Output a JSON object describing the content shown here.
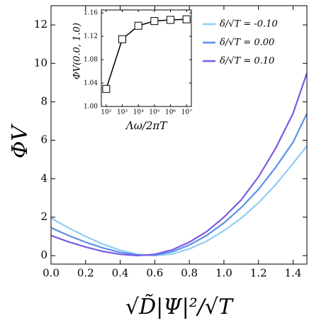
{
  "chart_data": [
    {
      "type": "line",
      "x_label": "√D̃|Ψ|²/√T",
      "y_label": "ΦV",
      "x": [
        0,
        0.1,
        0.2,
        0.3,
        0.4,
        0.5,
        0.6,
        0.7,
        0.8,
        0.9,
        1.0,
        1.1,
        1.2,
        1.3,
        1.4,
        1.48
      ],
      "series": [
        {
          "name": "δ/√T = -0.10",
          "color": "#8fcdf5",
          "values": [
            1.95,
            1.45,
            1.0,
            0.6,
            0.28,
            0.07,
            0.0,
            0.08,
            0.35,
            0.75,
            1.3,
            1.95,
            2.75,
            3.7,
            4.8,
            5.7
          ]
        },
        {
          "name": "δ/√T = 0.00",
          "color": "#5b8fe6",
          "values": [
            1.45,
            1.05,
            0.7,
            0.4,
            0.17,
            0.03,
            0.03,
            0.2,
            0.55,
            1.05,
            1.7,
            2.5,
            3.45,
            4.6,
            5.9,
            7.4
          ]
        },
        {
          "name": "δ/√T = 0.10",
          "color": "#7b5ae6",
          "values": [
            1.05,
            0.72,
            0.45,
            0.22,
            0.07,
            0.0,
            0.07,
            0.3,
            0.7,
            1.25,
            2.0,
            2.9,
            4.1,
            5.6,
            7.4,
            9.5
          ]
        }
      ],
      "xlim": [
        0,
        1.48
      ],
      "ylim": [
        -0.44,
        13.0
      ],
      "xticks": [
        {
          "value": 0,
          "label": "0.0"
        },
        {
          "value": 0.2,
          "label": "0.2"
        },
        {
          "value": 0.4,
          "label": "0.4"
        },
        {
          "value": 0.6,
          "label": "0.6"
        },
        {
          "value": 0.8,
          "label": "0.8"
        },
        {
          "value": 1.0,
          "label": "1.0"
        },
        {
          "value": 1.2,
          "label": "1.2"
        },
        {
          "value": 1.4,
          "label": "1.4"
        }
      ],
      "yticks": [
        0,
        2,
        4,
        6,
        8,
        10,
        12
      ],
      "legend": "top-right"
    },
    {
      "type": "line-marker",
      "x_label": "Λω/2πT",
      "y_label": "ΦV(0.0, 1.0)",
      "x": [
        100,
        1000,
        10000,
        100000,
        1000000,
        10000000
      ],
      "series": [
        {
          "color": "#000000",
          "values": [
            1.03,
            1.115,
            1.138,
            1.146,
            1.148,
            1.149
          ]
        }
      ],
      "xscale": "log",
      "xlim": [
        50,
        20000000
      ],
      "ylim": [
        1.0,
        1.165
      ],
      "xticks": [
        {
          "value": 100,
          "label": "10²"
        },
        {
          "value": 1000,
          "label": "10³"
        },
        {
          "value": 10000,
          "label": "10⁴"
        },
        {
          "value": 100000,
          "label": "10⁵"
        },
        {
          "value": 1000000,
          "label": "10⁶"
        },
        {
          "value": 10000000,
          "label": "10⁷"
        }
      ],
      "yticks": [
        {
          "value": 1.0,
          "label": "1.00"
        },
        {
          "value": 1.04,
          "label": "1.04"
        },
        {
          "value": 1.08,
          "label": "1.08"
        },
        {
          "value": 1.12,
          "label": "1.12"
        },
        {
          "value": 1.16,
          "label": "1.16"
        }
      ]
    }
  ]
}
